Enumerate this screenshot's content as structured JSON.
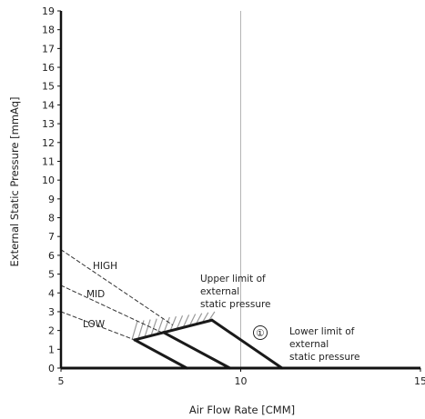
{
  "chart_data": {
    "type": "line",
    "title": "",
    "xlabel": "Air Flow Rate [CMM]",
    "ylabel": "External Static Pressure [mmAq]",
    "xlim": [
      5,
      15
    ],
    "ylim": [
      0,
      19
    ],
    "x_ticks": [
      "5",
      "10",
      "15"
    ],
    "y_ticks": [
      "0",
      "1",
      "2",
      "3",
      "4",
      "5",
      "6",
      "7",
      "8",
      "9",
      "10",
      "11",
      "12",
      "13",
      "14",
      "15",
      "16",
      "17",
      "18",
      "19"
    ],
    "grid": "vertical line at x=10",
    "series": [
      {
        "name": "HIGH",
        "style": "dashed",
        "x": [
          5.0,
          8.1
        ],
        "y": [
          6.3,
          2.3
        ]
      },
      {
        "name": "MID",
        "style": "dashed",
        "x": [
          5.0,
          7.8
        ],
        "y": [
          4.4,
          1.9
        ]
      },
      {
        "name": "LOW",
        "style": "dashed",
        "x": [
          5.0,
          7.05
        ],
        "y": [
          3.0,
          1.5
        ]
      },
      {
        "name": "Upper limit of external static pressure",
        "style": "solid",
        "x": [
          7.05,
          9.2
        ],
        "y": [
          1.5,
          2.55
        ]
      },
      {
        "name": "Lower limit of external static pressure",
        "style": "solid",
        "x": [
          8.5,
          9.7,
          11.15
        ],
        "y": [
          0.0,
          0.0,
          0.0
        ]
      },
      {
        "name": "LOW curve",
        "style": "solid",
        "x": [
          7.05,
          8.5
        ],
        "y": [
          1.5,
          0.0
        ]
      },
      {
        "name": "MID curve",
        "style": "solid",
        "x": [
          7.85,
          9.7
        ],
        "y": [
          1.9,
          0.0
        ]
      },
      {
        "name": "HIGH curve",
        "style": "solid",
        "x": [
          9.2,
          11.15
        ],
        "y": [
          2.55,
          0.0
        ]
      }
    ],
    "hatched_region": {
      "x": [
        7.05,
        9.2
      ],
      "y_low": [
        1.5,
        2.55
      ],
      "y_high": [
        2.5,
        3.0
      ]
    },
    "annotations": {
      "high": "HIGH",
      "mid": "MID",
      "low": "LOW",
      "upper_limit": [
        "Upper limit of",
        "external",
        "static pressure"
      ],
      "marker": "①",
      "lower_limit": [
        "Lower limit of",
        "external",
        "static pressure"
      ]
    }
  }
}
